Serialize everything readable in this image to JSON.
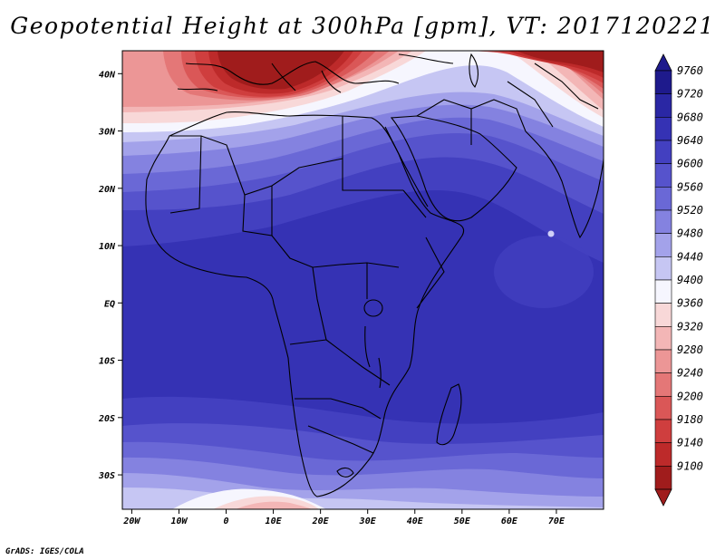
{
  "title": "Geopotential Height at 300hPa [gpm], VT: 2017120221",
  "credit": "GrADS: IGES/COLA",
  "map": {
    "lon_range": [
      -22,
      80
    ],
    "lat_range": [
      -36,
      44
    ],
    "lat_ticks": [
      {
        "value": 40,
        "label": "40N"
      },
      {
        "value": 30,
        "label": "30N"
      },
      {
        "value": 20,
        "label": "20N"
      },
      {
        "value": 10,
        "label": "10N"
      },
      {
        "value": 0,
        "label": "EQ"
      },
      {
        "value": -10,
        "label": "10S"
      },
      {
        "value": -20,
        "label": "20S"
      },
      {
        "value": -30,
        "label": "30S"
      }
    ],
    "lon_ticks": [
      {
        "value": -20,
        "label": "20W"
      },
      {
        "value": -10,
        "label": "10W"
      },
      {
        "value": 0,
        "label": "0"
      },
      {
        "value": 10,
        "label": "10E"
      },
      {
        "value": 20,
        "label": "20E"
      },
      {
        "value": 30,
        "label": "30E"
      },
      {
        "value": 40,
        "label": "40E"
      },
      {
        "value": 50,
        "label": "50E"
      },
      {
        "value": 60,
        "label": "60E"
      },
      {
        "value": 70,
        "label": "70E"
      }
    ]
  },
  "colorbar": {
    "levels": [
      {
        "label": "9760",
        "color": "#1e1a8c"
      },
      {
        "label": "9720",
        "color": "#2a27a4"
      },
      {
        "label": "9680",
        "color": "#3532b4"
      },
      {
        "label": "9640",
        "color": "#4340c0"
      },
      {
        "label": "9600",
        "color": "#5653cc"
      },
      {
        "label": "9560",
        "color": "#6a68d6"
      },
      {
        "label": "9520",
        "color": "#8482e0"
      },
      {
        "label": "9480",
        "color": "#a3a2ea"
      },
      {
        "label": "9440",
        "color": "#c6c6f3"
      },
      {
        "label": "9400",
        "color": "#f6f6fe"
      },
      {
        "label": "9360",
        "color": "#f8d8d8"
      },
      {
        "label": "9320",
        "color": "#f3b6b6"
      },
      {
        "label": "9280",
        "color": "#ec9696"
      },
      {
        "label": "9240",
        "color": "#e47777"
      },
      {
        "label": "9200",
        "color": "#da5757"
      },
      {
        "label": "9180",
        "color": "#cf3e3e"
      },
      {
        "label": "9140",
        "color": "#bd2a2a"
      },
      {
        "label": "9100",
        "color": "#a01c1c"
      }
    ]
  }
}
